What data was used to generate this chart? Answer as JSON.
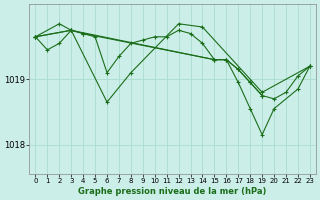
{
  "title": "Graphe pression niveau de la mer (hPa)",
  "background_color": "#cceee8",
  "grid_color": "#aaddcc",
  "line_color": "#1a6e1a",
  "marker_color": "#1a6e1a",
  "xlim": [
    -0.5,
    23.5
  ],
  "ylim": [
    1017.55,
    1020.15
  ],
  "yticks": [
    1018,
    1019
  ],
  "xticks": [
    0,
    1,
    2,
    3,
    4,
    5,
    6,
    7,
    8,
    9,
    10,
    11,
    12,
    13,
    14,
    15,
    16,
    17,
    18,
    19,
    20,
    21,
    22,
    23
  ],
  "series": [
    {
      "points": [
        [
          0,
          1019.65
        ],
        [
          1,
          1019.45
        ],
        [
          2,
          1019.55
        ],
        [
          3,
          1019.75
        ],
        [
          4,
          1019.7
        ],
        [
          5,
          1019.65
        ],
        [
          6,
          1019.1
        ],
        [
          7,
          1019.35
        ],
        [
          8,
          1019.55
        ],
        [
          9,
          1019.6
        ],
        [
          10,
          1019.65
        ],
        [
          11,
          1019.65
        ],
        [
          12,
          1019.75
        ],
        [
          13,
          1019.7
        ],
        [
          14,
          1019.55
        ],
        [
          15,
          1019.3
        ],
        [
          16,
          1019.3
        ],
        [
          17,
          1019.15
        ],
        [
          18,
          1018.95
        ],
        [
          19,
          1018.75
        ],
        [
          20,
          1018.7
        ],
        [
          21,
          1018.8
        ],
        [
          22,
          1019.05
        ],
        [
          23,
          1019.2
        ]
      ],
      "connect_all": true
    },
    {
      "points": [
        [
          0,
          1019.65
        ],
        [
          3,
          1019.75
        ],
        [
          6,
          1018.65
        ],
        [
          8,
          1019.1
        ],
        [
          12,
          1019.85
        ],
        [
          14,
          1019.8
        ],
        [
          19,
          1018.8
        ],
        [
          23,
          1019.2
        ]
      ],
      "connect_all": true
    },
    {
      "points": [
        [
          0,
          1019.65
        ],
        [
          2,
          1019.85
        ],
        [
          3,
          1019.75
        ],
        [
          4,
          1019.7
        ],
        [
          15,
          1019.3
        ],
        [
          16,
          1019.3
        ],
        [
          17,
          1018.95
        ],
        [
          18,
          1018.55
        ],
        [
          19,
          1018.15
        ],
        [
          20,
          1018.55
        ],
        [
          22,
          1018.85
        ],
        [
          23,
          1019.2
        ]
      ],
      "connect_all": true
    },
    {
      "points": [
        [
          0,
          1019.65
        ],
        [
          3,
          1019.75
        ],
        [
          15,
          1019.3
        ],
        [
          16,
          1019.3
        ],
        [
          17,
          1019.15
        ],
        [
          18,
          1018.95
        ],
        [
          19,
          1018.75
        ]
      ],
      "connect_all": true
    }
  ]
}
